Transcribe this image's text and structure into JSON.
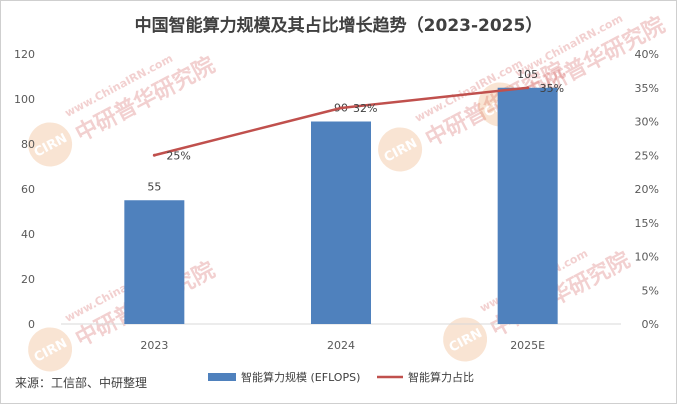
{
  "chart_data": {
    "type": "bar",
    "title": "中国智能算力规模及其占比增长趋势（2023-2025）",
    "categories": [
      "2023",
      "2024",
      "2025E"
    ],
    "series": [
      {
        "name": "智能算力规模 (EFLOPS)",
        "type": "bar",
        "axis": "left",
        "color": "#4f81bd",
        "values": [
          55,
          90,
          105
        ],
        "labels": [
          "55",
          "90",
          "105"
        ]
      },
      {
        "name": "智能算力占比",
        "type": "line",
        "axis": "right",
        "color": "#c0504d",
        "values": [
          25,
          32,
          35
        ],
        "labels": [
          "25%",
          "32%",
          "35%"
        ]
      }
    ],
    "yleft": {
      "min": 0,
      "max": 120,
      "ticks": [
        "0",
        "20",
        "40",
        "60",
        "80",
        "100",
        "120"
      ]
    },
    "yright": {
      "min": 0,
      "max": 40,
      "ticks": [
        "0%",
        "5%",
        "10%",
        "15%",
        "20%",
        "25%",
        "30%",
        "35%",
        "40%"
      ]
    },
    "legend_position": "bottom",
    "grid": false
  },
  "source": "来源：工信部、中研整理",
  "watermark": {
    "url": "www.ChinaIRN.com",
    "name": "中研普华研究院",
    "logo": "CIRN"
  }
}
